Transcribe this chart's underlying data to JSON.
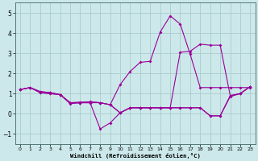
{
  "xlabel": "Windchill (Refroidissement éolien,°C)",
  "bg_color": "#cce8ea",
  "grid_color": "#aacccc",
  "line_color": "#990099",
  "xlim": [
    -0.5,
    23.5
  ],
  "ylim": [
    -1.5,
    5.5
  ],
  "yticks": [
    -1,
    0,
    1,
    2,
    3,
    4,
    5
  ],
  "xticks": [
    0,
    1,
    2,
    3,
    4,
    5,
    6,
    7,
    8,
    9,
    10,
    11,
    12,
    13,
    14,
    15,
    16,
    17,
    18,
    19,
    20,
    21,
    22,
    23
  ],
  "series": [
    {
      "x": [
        0,
        1,
        2,
        3,
        4,
        5,
        6,
        7,
        8,
        9,
        10,
        11,
        12,
        13,
        14,
        15,
        16,
        17,
        18,
        19,
        20,
        21,
        22,
        23
      ],
      "y": [
        1.2,
        1.3,
        1.1,
        1.05,
        0.95,
        0.55,
        0.55,
        0.6,
        0.55,
        0.45,
        1.45,
        2.1,
        2.55,
        2.6,
        4.05,
        4.85,
        4.45,
        2.95,
        1.3,
        1.3,
        1.3,
        1.3,
        1.3,
        1.3
      ]
    },
    {
      "x": [
        0,
        1,
        2,
        3,
        4,
        5,
        6,
        7,
        8,
        9,
        10,
        11,
        12,
        13,
        14,
        15,
        16,
        17,
        18,
        19,
        20,
        21,
        22,
        23
      ],
      "y": [
        1.2,
        1.3,
        1.1,
        1.05,
        0.95,
        0.55,
        0.55,
        0.55,
        0.55,
        0.45,
        0.05,
        0.3,
        0.3,
        0.3,
        0.3,
        0.3,
        3.05,
        3.1,
        3.45,
        3.4,
        3.4,
        0.9,
        1.0,
        1.35
      ]
    },
    {
      "x": [
        0,
        1,
        2,
        3,
        4,
        5,
        6,
        7,
        8,
        9,
        10,
        11,
        12,
        13,
        14,
        15,
        16,
        17,
        18,
        19,
        20,
        21,
        22,
        23
      ],
      "y": [
        1.2,
        1.3,
        1.05,
        1.0,
        0.95,
        0.5,
        0.55,
        0.55,
        -0.75,
        -0.45,
        0.05,
        0.3,
        0.3,
        0.3,
        0.3,
        0.3,
        0.3,
        0.3,
        0.3,
        -0.1,
        -0.1,
        0.9,
        1.0,
        1.35
      ]
    },
    {
      "x": [
        0,
        1,
        2,
        3,
        4,
        5,
        6,
        7,
        8,
        9,
        10,
        11,
        12,
        13,
        14,
        15,
        16,
        17,
        18,
        19,
        20,
        21,
        22,
        23
      ],
      "y": [
        1.2,
        1.3,
        1.05,
        1.0,
        0.95,
        0.55,
        0.58,
        0.58,
        0.55,
        0.45,
        0.05,
        0.3,
        0.3,
        0.3,
        0.3,
        0.3,
        0.3,
        0.3,
        0.3,
        -0.1,
        -0.1,
        0.85,
        1.0,
        1.35
      ]
    }
  ]
}
